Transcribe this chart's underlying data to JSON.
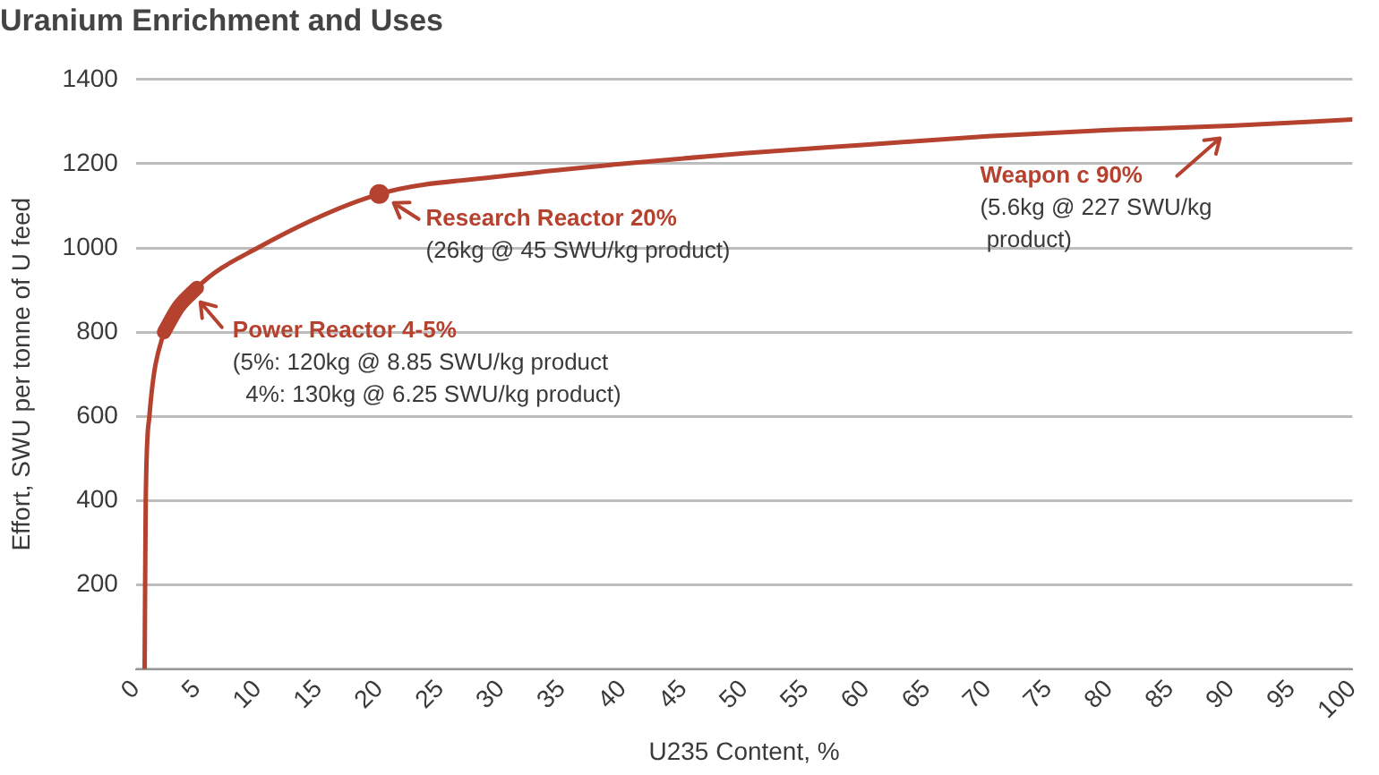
{
  "chart_data": {
    "type": "line",
    "title": "Uranium Enrichment and Uses",
    "xlabel": "U235 Content, %",
    "ylabel": "Effort, SWU per tonne of U feed",
    "series": [
      {
        "color": "#b5412f",
        "x": [
          0.71,
          0.75,
          0.8,
          1.1,
          2.3,
          5,
          10,
          20,
          30,
          40,
          50,
          60,
          70,
          80,
          90,
          100
        ],
        "values": [
          0,
          200,
          400,
          600,
          800,
          905,
          1000,
          1128,
          1170,
          1200,
          1225,
          1245,
          1265,
          1280,
          1290,
          1305
        ]
      },
      {
        "color": "#b5412f",
        "x": [
          2.3,
          3.5,
          5
        ],
        "values": [
          800,
          860,
          905
        ]
      },
      {
        "type": "scatter",
        "color": "#b5412f",
        "marker": "circle",
        "x": [
          20
        ],
        "values": [
          1128
        ]
      }
    ],
    "xlim": [
      0,
      100
    ],
    "xticks": [
      0,
      5,
      10,
      15,
      20,
      25,
      30,
      35,
      40,
      45,
      50,
      55,
      60,
      65,
      70,
      75,
      80,
      85,
      90,
      95,
      100
    ],
    "ylim": [
      0,
      1400
    ],
    "yticks": [
      {
        "value": 0,
        "label": null
      },
      200,
      400,
      600,
      800,
      1000,
      1200,
      1400
    ],
    "grid": "y",
    "legend": false,
    "annotations": [
      {
        "text": "Power Reactor 4-5%\n(5%: 120kg @ 8.85 SWU/kg product\n  4%: 130kg @ 6.25 SWU/kg product)",
        "x": 5,
        "y": 905
      },
      {
        "text": "Research Reactor 20%\n(26kg @ 45 SWU/kg product)",
        "x": 20,
        "y": 1128
      },
      {
        "text": "Weapon c 90%\n(5.6kg @ 227 SWU/kg\n product)",
        "x": 90,
        "y": 1290
      }
    ]
  }
}
